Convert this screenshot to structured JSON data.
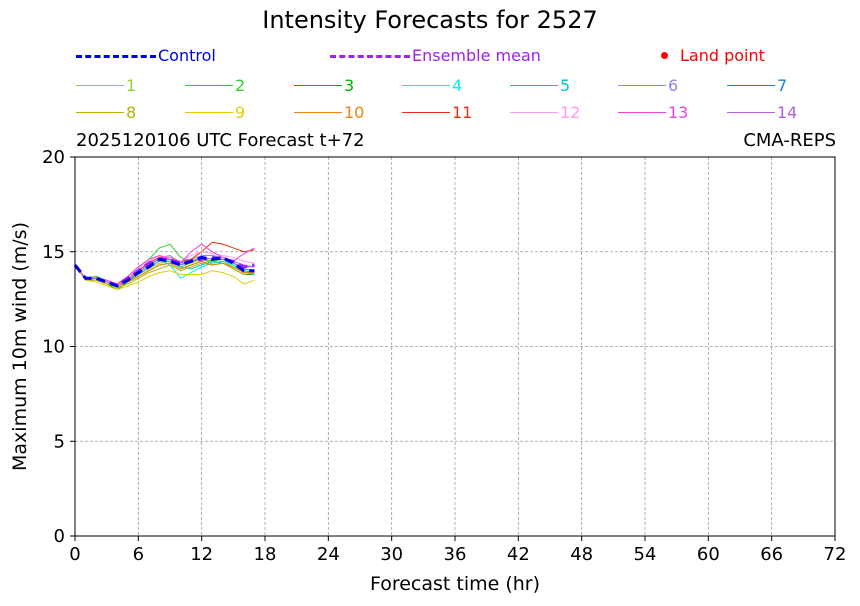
{
  "chart_data": {
    "type": "line",
    "title": "Intensity Forecasts for 2527",
    "subtitle_left": "2025120106 UTC Forecast t+72",
    "subtitle_right": "CMA-REPS",
    "xlabel": "Forecast time (hr)",
    "ylabel": "Maximum 10m wind (m/s)",
    "xlim": [
      0,
      72
    ],
    "ylim": [
      0,
      20
    ],
    "xticks": [
      0,
      6,
      12,
      18,
      24,
      30,
      36,
      42,
      48,
      54,
      60,
      66,
      72
    ],
    "yticks": [
      0,
      5,
      10,
      15,
      20
    ],
    "grid": true,
    "x": [
      0,
      1,
      2,
      3,
      4,
      5,
      6,
      7,
      8,
      9,
      10,
      11,
      12,
      13,
      14,
      15,
      16,
      17
    ],
    "legend_special": [
      {
        "name": "Control",
        "color": "#0000ee",
        "style": "dashed"
      },
      {
        "name": "Ensemble mean",
        "color": "#a020f0",
        "style": "dashed"
      },
      {
        "name": "Land point",
        "color": "#ff0000",
        "style": "dot"
      }
    ],
    "control": {
      "name": "Control",
      "color": "#0000ee",
      "values": [
        14.3,
        13.6,
        13.6,
        13.4,
        13.2,
        13.5,
        13.9,
        14.2,
        14.6,
        14.5,
        14.3,
        14.5,
        14.7,
        14.6,
        14.7,
        14.4,
        14.0,
        14.0
      ]
    },
    "mean": {
      "name": "Ensemble mean",
      "color": "#a020f0",
      "values": [
        14.3,
        13.6,
        13.6,
        13.4,
        13.2,
        13.6,
        14.0,
        14.4,
        14.6,
        14.6,
        14.4,
        14.5,
        14.6,
        14.7,
        14.6,
        14.5,
        14.2,
        14.3
      ]
    },
    "series": [
      {
        "name": "1",
        "color": "#9acd32",
        "values": [
          14.3,
          13.5,
          13.6,
          13.4,
          13.1,
          13.4,
          13.8,
          14.1,
          14.4,
          14.5,
          14.2,
          14.4,
          14.6,
          14.4,
          14.5,
          14.2,
          13.9,
          14.0
        ]
      },
      {
        "name": "2",
        "color": "#32cd32",
        "values": [
          14.3,
          13.6,
          13.7,
          13.5,
          13.3,
          13.7,
          14.2,
          14.6,
          15.2,
          15.4,
          14.7,
          14.5,
          14.6,
          14.5,
          14.6,
          14.3,
          14.0,
          13.9
        ]
      },
      {
        "name": "3",
        "color": "#00b300",
        "values": [
          14.3,
          13.5,
          13.5,
          13.3,
          13.0,
          13.4,
          13.7,
          14.0,
          14.3,
          14.4,
          14.1,
          14.3,
          14.5,
          14.3,
          14.4,
          14.1,
          13.8,
          13.8
        ]
      },
      {
        "name": "4",
        "color": "#00eeee",
        "values": [
          14.3,
          13.6,
          13.6,
          13.4,
          13.2,
          13.5,
          13.9,
          14.3,
          14.6,
          14.3,
          13.6,
          13.9,
          14.2,
          14.4,
          14.5,
          14.3,
          14.0,
          13.8
        ]
      },
      {
        "name": "5",
        "color": "#00c5cd",
        "values": [
          14.3,
          13.6,
          13.6,
          13.4,
          13.2,
          13.5,
          13.8,
          14.2,
          14.5,
          14.5,
          14.2,
          14.1,
          14.3,
          14.5,
          14.4,
          14.2,
          14.0,
          13.9
        ]
      },
      {
        "name": "6",
        "color": "#8888ee",
        "values": [
          14.3,
          13.6,
          13.6,
          13.5,
          13.2,
          13.6,
          14.0,
          14.4,
          14.7,
          14.8,
          14.4,
          14.6,
          14.8,
          14.8,
          14.7,
          14.5,
          14.3,
          14.2
        ]
      },
      {
        "name": "7",
        "color": "#1e7fe0",
        "values": [
          14.3,
          13.6,
          13.6,
          13.4,
          13.2,
          13.5,
          13.9,
          14.3,
          14.6,
          14.6,
          14.3,
          14.5,
          14.7,
          14.6,
          14.6,
          14.4,
          14.1,
          14.0
        ]
      },
      {
        "name": "8",
        "color": "#bdb000",
        "values": [
          14.3,
          13.5,
          13.5,
          13.3,
          13.1,
          13.3,
          13.6,
          13.9,
          14.1,
          14.3,
          14.0,
          14.2,
          14.4,
          14.3,
          14.4,
          14.1,
          13.8,
          13.9
        ]
      },
      {
        "name": "9",
        "color": "#e0d000",
        "values": [
          14.3,
          13.5,
          13.4,
          13.2,
          13.0,
          13.2,
          13.4,
          13.7,
          13.9,
          14.0,
          13.8,
          13.8,
          13.8,
          14.0,
          13.9,
          13.7,
          13.3,
          13.5
        ]
      },
      {
        "name": "10",
        "color": "#f08010",
        "values": [
          14.3,
          13.6,
          13.6,
          13.4,
          13.2,
          13.4,
          13.7,
          14.0,
          14.3,
          14.4,
          14.1,
          14.3,
          14.5,
          14.3,
          14.4,
          14.2,
          13.9,
          13.9
        ]
      },
      {
        "name": "11",
        "color": "#e83010",
        "values": [
          14.3,
          13.6,
          13.6,
          13.5,
          13.3,
          13.6,
          14.0,
          14.4,
          14.7,
          14.7,
          14.5,
          14.6,
          15.0,
          15.5,
          15.4,
          15.2,
          15.0,
          15.1
        ]
      },
      {
        "name": "12",
        "color": "#ff99ee",
        "values": [
          14.3,
          13.6,
          13.6,
          13.5,
          13.2,
          13.6,
          14.1,
          14.5,
          14.8,
          14.7,
          14.5,
          14.8,
          15.0,
          14.9,
          14.8,
          14.7,
          14.5,
          14.4
        ]
      },
      {
        "name": "13",
        "color": "#ee44dd",
        "values": [
          14.3,
          13.6,
          13.6,
          13.5,
          13.3,
          13.7,
          14.2,
          14.6,
          14.8,
          14.6,
          14.4,
          15.0,
          15.4,
          15.0,
          14.7,
          14.5,
          14.9,
          15.2
        ]
      },
      {
        "name": "14",
        "color": "#b060e0",
        "values": [
          14.3,
          13.6,
          13.6,
          13.4,
          13.2,
          13.5,
          13.9,
          14.3,
          14.6,
          14.6,
          14.4,
          14.5,
          14.7,
          14.6,
          14.6,
          14.4,
          14.2,
          14.2
        ]
      }
    ]
  }
}
